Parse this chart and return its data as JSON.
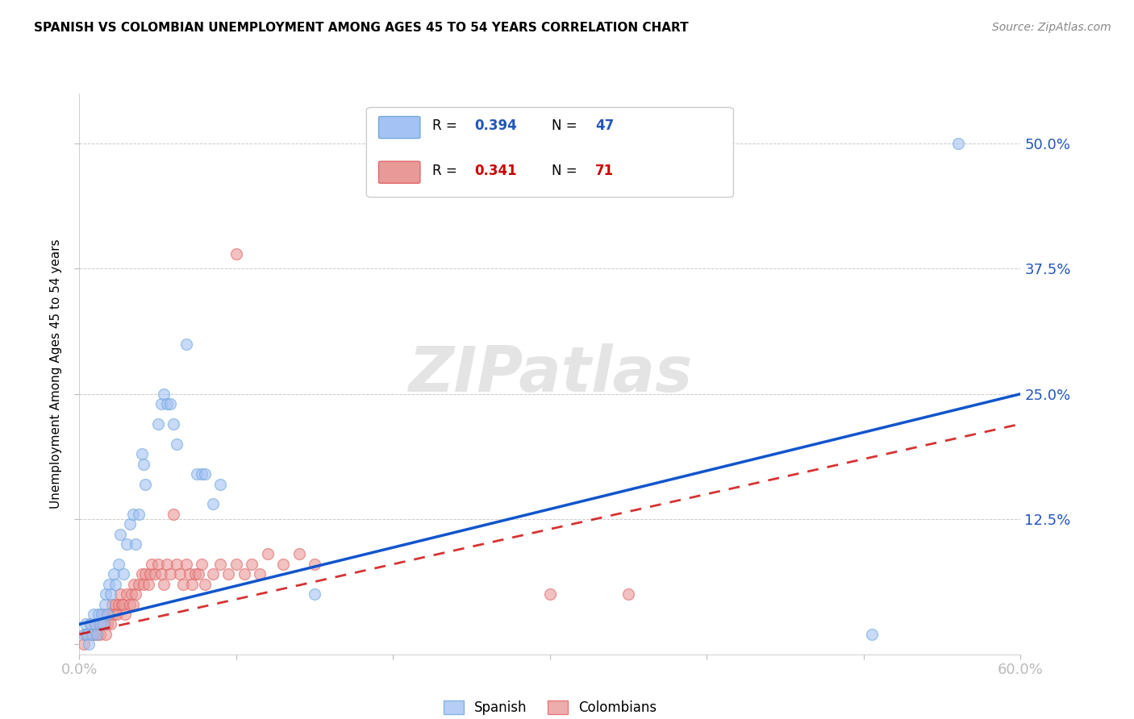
{
  "title": "SPANISH VS COLOMBIAN UNEMPLOYMENT AMONG AGES 45 TO 54 YEARS CORRELATION CHART",
  "source": "Source: ZipAtlas.com",
  "ylabel": "Unemployment Among Ages 45 to 54 years",
  "xlim": [
    0.0,
    0.6
  ],
  "ylim": [
    -0.01,
    0.55
  ],
  "xticks": [
    0.0,
    0.1,
    0.2,
    0.3,
    0.4,
    0.5,
    0.6
  ],
  "yticks": [
    0.0,
    0.125,
    0.25,
    0.375,
    0.5
  ],
  "ytick_labels": [
    "",
    "12.5%",
    "25.0%",
    "37.5%",
    "50.0%"
  ],
  "xtick_labels": [
    "0.0%",
    "",
    "",
    "",
    "",
    "",
    "60.0%"
  ],
  "spanish_color": "#a4c2f4",
  "colombian_color": "#ea9999",
  "spanish_edge_color": "#6fa8dc",
  "colombian_edge_color": "#e06666",
  "spanish_line_color": "#1155cc",
  "colombian_line_color": "#cc0000",
  "spanish_points": [
    [
      0.003,
      0.01
    ],
    [
      0.004,
      0.02
    ],
    [
      0.005,
      0.01
    ],
    [
      0.006,
      0.0
    ],
    [
      0.007,
      0.02
    ],
    [
      0.008,
      0.01
    ],
    [
      0.009,
      0.03
    ],
    [
      0.01,
      0.02
    ],
    [
      0.011,
      0.01
    ],
    [
      0.012,
      0.03
    ],
    [
      0.013,
      0.02
    ],
    [
      0.014,
      0.03
    ],
    [
      0.015,
      0.02
    ],
    [
      0.016,
      0.04
    ],
    [
      0.017,
      0.05
    ],
    [
      0.018,
      0.03
    ],
    [
      0.019,
      0.06
    ],
    [
      0.02,
      0.05
    ],
    [
      0.022,
      0.07
    ],
    [
      0.023,
      0.06
    ],
    [
      0.025,
      0.08
    ],
    [
      0.026,
      0.11
    ],
    [
      0.028,
      0.07
    ],
    [
      0.03,
      0.1
    ],
    [
      0.032,
      0.12
    ],
    [
      0.034,
      0.13
    ],
    [
      0.036,
      0.1
    ],
    [
      0.038,
      0.13
    ],
    [
      0.04,
      0.19
    ],
    [
      0.041,
      0.18
    ],
    [
      0.042,
      0.16
    ],
    [
      0.05,
      0.22
    ],
    [
      0.052,
      0.24
    ],
    [
      0.054,
      0.25
    ],
    [
      0.056,
      0.24
    ],
    [
      0.058,
      0.24
    ],
    [
      0.06,
      0.22
    ],
    [
      0.062,
      0.2
    ],
    [
      0.068,
      0.3
    ],
    [
      0.075,
      0.17
    ],
    [
      0.078,
      0.17
    ],
    [
      0.08,
      0.17
    ],
    [
      0.085,
      0.14
    ],
    [
      0.09,
      0.16
    ],
    [
      0.15,
      0.05
    ],
    [
      0.505,
      0.01
    ],
    [
      0.56,
      0.5
    ]
  ],
  "colombian_points": [
    [
      0.003,
      0.0
    ],
    [
      0.004,
      0.01
    ],
    [
      0.005,
      0.01
    ],
    [
      0.006,
      0.01
    ],
    [
      0.007,
      0.02
    ],
    [
      0.008,
      0.01
    ],
    [
      0.009,
      0.01
    ],
    [
      0.01,
      0.02
    ],
    [
      0.011,
      0.01
    ],
    [
      0.012,
      0.02
    ],
    [
      0.013,
      0.01
    ],
    [
      0.014,
      0.02
    ],
    [
      0.015,
      0.03
    ],
    [
      0.016,
      0.02
    ],
    [
      0.017,
      0.01
    ],
    [
      0.018,
      0.02
    ],
    [
      0.019,
      0.03
    ],
    [
      0.02,
      0.02
    ],
    [
      0.021,
      0.04
    ],
    [
      0.022,
      0.03
    ],
    [
      0.023,
      0.04
    ],
    [
      0.024,
      0.03
    ],
    [
      0.025,
      0.04
    ],
    [
      0.026,
      0.05
    ],
    [
      0.027,
      0.04
    ],
    [
      0.028,
      0.04
    ],
    [
      0.029,
      0.03
    ],
    [
      0.03,
      0.05
    ],
    [
      0.032,
      0.04
    ],
    [
      0.033,
      0.05
    ],
    [
      0.034,
      0.04
    ],
    [
      0.035,
      0.06
    ],
    [
      0.036,
      0.05
    ],
    [
      0.038,
      0.06
    ],
    [
      0.04,
      0.07
    ],
    [
      0.041,
      0.06
    ],
    [
      0.042,
      0.07
    ],
    [
      0.044,
      0.06
    ],
    [
      0.045,
      0.07
    ],
    [
      0.046,
      0.08
    ],
    [
      0.048,
      0.07
    ],
    [
      0.05,
      0.08
    ],
    [
      0.052,
      0.07
    ],
    [
      0.054,
      0.06
    ],
    [
      0.056,
      0.08
    ],
    [
      0.058,
      0.07
    ],
    [
      0.06,
      0.13
    ],
    [
      0.062,
      0.08
    ],
    [
      0.064,
      0.07
    ],
    [
      0.066,
      0.06
    ],
    [
      0.068,
      0.08
    ],
    [
      0.07,
      0.07
    ],
    [
      0.072,
      0.06
    ],
    [
      0.074,
      0.07
    ],
    [
      0.076,
      0.07
    ],
    [
      0.078,
      0.08
    ],
    [
      0.08,
      0.06
    ],
    [
      0.085,
      0.07
    ],
    [
      0.09,
      0.08
    ],
    [
      0.095,
      0.07
    ],
    [
      0.1,
      0.08
    ],
    [
      0.105,
      0.07
    ],
    [
      0.11,
      0.08
    ],
    [
      0.115,
      0.07
    ],
    [
      0.12,
      0.09
    ],
    [
      0.13,
      0.08
    ],
    [
      0.14,
      0.09
    ],
    [
      0.15,
      0.08
    ],
    [
      0.1,
      0.39
    ],
    [
      0.3,
      0.05
    ],
    [
      0.35,
      0.05
    ]
  ]
}
